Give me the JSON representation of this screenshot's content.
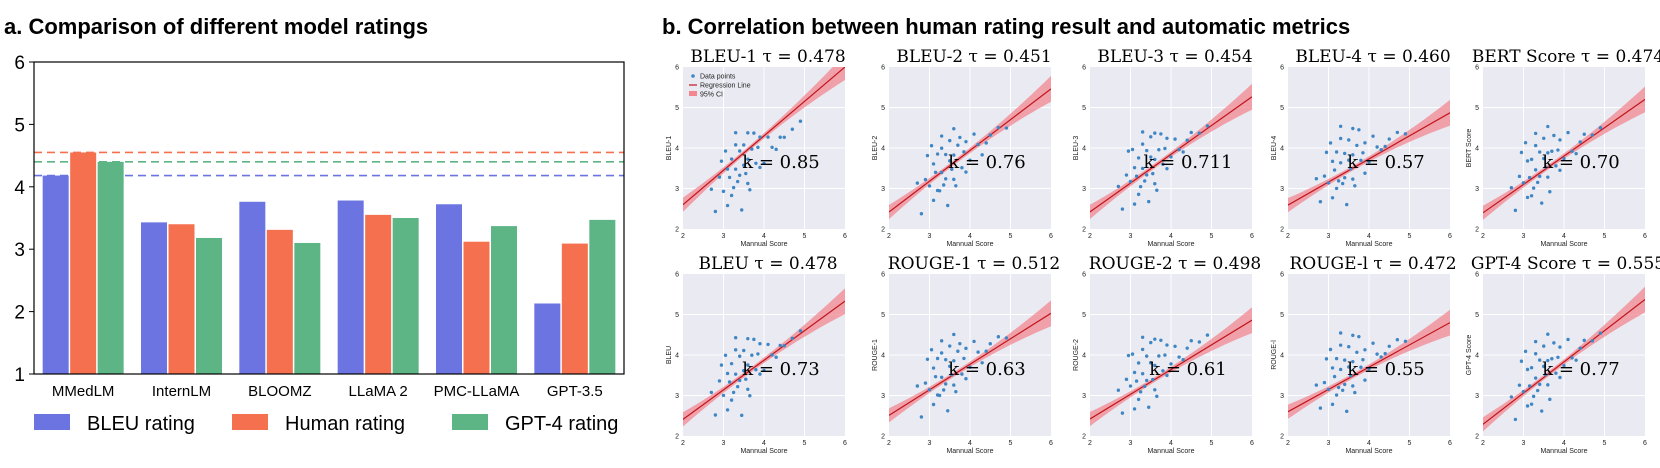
{
  "panel_a": {
    "title": "a. Comparison of different model ratings"
  },
  "panel_b": {
    "title": "b. Correlation between human rating result and automatic metrics"
  },
  "chart_data": [
    {
      "type": "bar",
      "title": "a. Comparison of different model ratings",
      "categories": [
        "MMedLM",
        "InternLM",
        "BLOOMZ",
        "LLaMA 2",
        "PMC-LLaMA",
        "GPT-3.5"
      ],
      "series": [
        {
          "name": "BLEU rating",
          "color": "#6b74e0",
          "values": [
            4.18,
            3.43,
            3.76,
            3.78,
            3.72,
            2.13
          ]
        },
        {
          "name": "Human rating",
          "color": "#f5704f",
          "values": [
            4.55,
            3.4,
            3.31,
            3.55,
            3.12,
            3.09
          ]
        },
        {
          "name": "GPT-4 rating",
          "color": "#5db585",
          "values": [
            4.4,
            3.18,
            3.1,
            3.5,
            3.37,
            3.47
          ]
        }
      ],
      "reference_lines": [
        {
          "value": 4.55,
          "color": "#f5704f",
          "style": "dashed"
        },
        {
          "value": 4.4,
          "color": "#5db585",
          "style": "dashed"
        },
        {
          "value": 4.18,
          "color": "#6b74e0",
          "style": "dashed"
        }
      ],
      "ylim": [
        1,
        6
      ],
      "yticks": [
        "1",
        "2",
        "3",
        "4",
        "5",
        "6"
      ],
      "legend": [
        "BLEU rating",
        "Human rating",
        "GPT-4 rating"
      ],
      "legend_position": "bottom"
    },
    {
      "type": "scatter",
      "title": "b. Correlation between human rating result and automatic metrics",
      "xlabel": "Mannual Score",
      "xlim": [
        2,
        6
      ],
      "ylim": [
        2,
        6
      ],
      "xticks": [
        "2",
        "3",
        "4",
        "5",
        "6"
      ],
      "yticks": [
        "2",
        "3",
        "4",
        "5",
        "6"
      ],
      "legend": [
        "Data points",
        "Regression Line",
        "95% CI"
      ],
      "points": [
        [
          2.9,
          3.3
        ],
        [
          3.0,
          3.1
        ],
        [
          3.1,
          3.6
        ],
        [
          3.2,
          3.8
        ],
        [
          3.2,
          2.9
        ],
        [
          3.3,
          3.5
        ],
        [
          3.3,
          4.1
        ],
        [
          3.4,
          3.3
        ],
        [
          3.4,
          3.9
        ],
        [
          3.5,
          3.7
        ],
        [
          3.5,
          4.2
        ],
        [
          3.6,
          3.2
        ],
        [
          3.6,
          3.8
        ],
        [
          3.7,
          4.0
        ],
        [
          3.8,
          3.6
        ],
        [
          3.9,
          4.2
        ],
        [
          4.0,
          3.7
        ],
        [
          4.1,
          4.3
        ],
        [
          4.3,
          3.9
        ],
        [
          4.5,
          4.3
        ],
        [
          2.8,
          2.5
        ],
        [
          3.1,
          2.7
        ],
        [
          3.3,
          4.4
        ],
        [
          3.45,
          2.6
        ],
        [
          3.25,
          3.05
        ],
        [
          3.55,
          3.45
        ],
        [
          3.75,
          4.35
        ],
        [
          4.2,
          4.0
        ],
        [
          4.7,
          4.4
        ],
        [
          2.95,
          3.85
        ],
        [
          3.15,
          3.35
        ],
        [
          3.65,
          3.0
        ],
        [
          3.85,
          3.95
        ],
        [
          4.4,
          4.15
        ],
        [
          3.05,
          4.05
        ],
        [
          3.35,
          3.15
        ],
        [
          3.6,
          4.45
        ],
        [
          3.9,
          3.45
        ],
        [
          2.7,
          3.1
        ],
        [
          4.9,
          4.5
        ]
      ],
      "subplots": [
        {
          "title": "BLEU-1 τ = 0.478",
          "ylabel": "BLEU-1",
          "k_label": "k = 0.85",
          "slope": 0.85,
          "intercept": 0.9
        },
        {
          "title": "BLEU-2 τ = 0.451",
          "ylabel": "BLEU-2",
          "k_label": "k = 0.76",
          "slope": 0.76,
          "intercept": 0.9
        },
        {
          "title": "BLEU-3 τ = 0.454",
          "ylabel": "BLEU-3",
          "k_label": "k = 0.711",
          "slope": 0.711,
          "intercept": 1.0
        },
        {
          "title": "BLEU-4 τ = 0.460",
          "ylabel": "BLEU-4",
          "k_label": "k = 0.57",
          "slope": 0.57,
          "intercept": 1.45
        },
        {
          "title": "BERT Score τ = 0.474",
          "ylabel": "BERT Score",
          "k_label": "k = 0.70",
          "slope": 0.7,
          "intercept": 1.0
        },
        {
          "title": "BLEU τ = 0.478",
          "ylabel": "BLEU",
          "k_label": "k = 0.73",
          "slope": 0.73,
          "intercept": 0.95
        },
        {
          "title": "ROUGE-1 τ = 0.512",
          "ylabel": "ROUGE-1",
          "k_label": "k = 0.63",
          "slope": 0.63,
          "intercept": 1.25
        },
        {
          "title": "ROUGE-2 τ = 0.498",
          "ylabel": "ROUGE-2",
          "k_label": "k = 0.61",
          "slope": 0.61,
          "intercept": 1.2
        },
        {
          "title": "ROUGE-l τ = 0.472",
          "ylabel": "ROUGE-l",
          "k_label": "k = 0.55",
          "slope": 0.55,
          "intercept": 1.5
        },
        {
          "title": "GPT-4 Score τ = 0.555",
          "ylabel": "GPT-4 Score",
          "k_label": "k = 0.77",
          "slope": 0.77,
          "intercept": 0.75
        }
      ]
    }
  ]
}
